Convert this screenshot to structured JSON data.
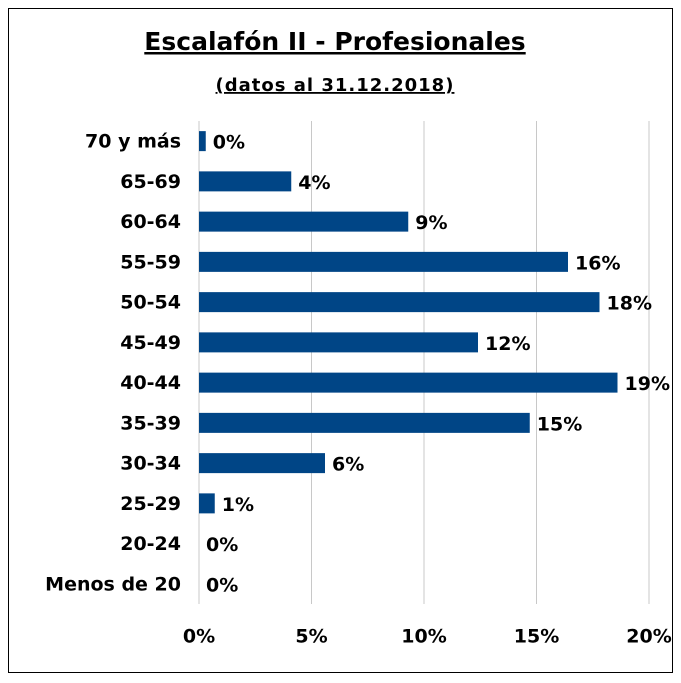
{
  "chart_data": {
    "type": "bar",
    "orientation": "horizontal",
    "title": "Escalafón II - Profesionales",
    "subtitle": "(datos al 31.12.2018)",
    "categories": [
      "70 y más",
      "65-69",
      "60-64",
      "55-59",
      "50-54",
      "45-49",
      "40-44",
      "35-39",
      "30-34",
      "25-29",
      "20-24",
      "Menos de 20"
    ],
    "values": [
      0.3,
      4.1,
      9.3,
      16.4,
      17.8,
      12.4,
      18.6,
      14.7,
      5.6,
      0.7,
      0,
      0
    ],
    "value_labels": [
      "0%",
      "4%",
      "9%",
      "16%",
      "18%",
      "12%",
      "19%",
      "15%",
      "6%",
      "1%",
      "0%",
      "0%"
    ],
    "color": "#004586",
    "xlim": [
      0,
      20
    ],
    "xticks": [
      {
        "value": 0,
        "label": "0%"
      },
      {
        "value": 5,
        "label": "5%"
      },
      {
        "value": 10,
        "label": "10%"
      },
      {
        "value": 15,
        "label": "15%"
      },
      {
        "value": 20,
        "label": "20%"
      }
    ],
    "grid": true
  }
}
